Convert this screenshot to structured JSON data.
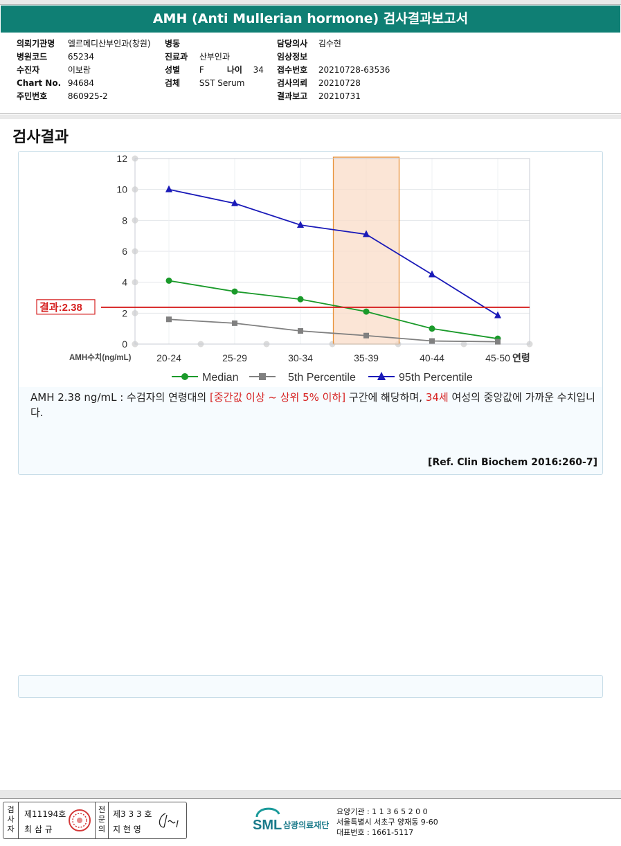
{
  "report": {
    "title": "AMH (Anti Mullerian hormone) 검사결과보고서"
  },
  "info": {
    "institution": {
      "label": "의뢰기관명",
      "value": "엘르메디산부인과(창원)"
    },
    "hospital_code": {
      "label": "병원코드",
      "value": "65234"
    },
    "patient": {
      "label": "수진자",
      "value": "이보람"
    },
    "chart_no": {
      "label": "Chart No.",
      "value": "94684"
    },
    "resident_no": {
      "label": "주민번호",
      "value": "860925-2"
    },
    "ward": {
      "label": "병동",
      "value": ""
    },
    "department": {
      "label": "진료과",
      "value": "산부인과"
    },
    "sex": {
      "label": "성별",
      "value": "F"
    },
    "age": {
      "label": "나이",
      "value": "34"
    },
    "specimen": {
      "label": "검체",
      "value": "SST Serum"
    },
    "doctor": {
      "label": "담당의사",
      "value": "김수현"
    },
    "clinical_info": {
      "label": "임상정보",
      "value": ""
    },
    "receipt_no": {
      "label": "접수번호",
      "value": "20210728-63536"
    },
    "request_date": {
      "label": "검사의뢰",
      "value": "20210728"
    },
    "report_date": {
      "label": "결과보고",
      "value": "20210731"
    }
  },
  "section_title": "검사결과",
  "chart_data": {
    "type": "line",
    "categories": [
      "20-24",
      "25-29",
      "30-34",
      "35-39",
      "40-44",
      "45-50"
    ],
    "x_axis_suffix": "연령",
    "y_axis_label": "AMH수치(ng/mL)",
    "ylim": [
      0,
      12
    ],
    "yticks": [
      "0",
      "2",
      "4",
      "6",
      "8",
      "10",
      "12"
    ],
    "highlight_category": "35-39",
    "result_line": {
      "value": 2.38,
      "label": "결과:2.38",
      "color": "#d62020"
    },
    "series": [
      {
        "name": "Median",
        "values": [
          4.1,
          3.4,
          2.9,
          2.1,
          1.0,
          0.35
        ],
        "color": "#1a9a2a",
        "marker": "circle"
      },
      {
        "name": "5th Percentile",
        "values": [
          1.6,
          1.35,
          0.85,
          0.55,
          0.2,
          0.15
        ],
        "color": "#808080",
        "marker": "square"
      },
      {
        "name": "95th Percentile",
        "values": [
          10.0,
          9.1,
          7.7,
          7.1,
          4.5,
          1.85
        ],
        "color": "#1a1ab8",
        "marker": "triangle"
      }
    ]
  },
  "description": {
    "p1": "AMH  2.38 ng/mL : 수검자의 연령대의 ",
    "p2": "[중간값 이상 ~ 상위 5% 이하]",
    "p3": "  구간에 해당하며, ",
    "p4": "34세",
    "p5": " 여성의 중앙값에 가까운 수치입니다."
  },
  "reference": "[Ref. Clin Biochem 2016:260-7]",
  "footer": {
    "sign1_vertical": [
      "검",
      "사",
      "자"
    ],
    "sign1_no": "제11194호",
    "sign1_name": "최 삼 규",
    "sign2_vertical": [
      "전",
      "문",
      "의"
    ],
    "sign2_no": "제3 3 3 호",
    "sign2_name": "지 현 영",
    "org_logo": "SML",
    "org_name": "삼광의료재단",
    "org_id": "요양기관 : 1 1 3 6 5 2 0 0",
    "org_address": "서울특별시 서초구 양재동 9-60",
    "org_phone": "대표번호 : 1661-5117"
  }
}
